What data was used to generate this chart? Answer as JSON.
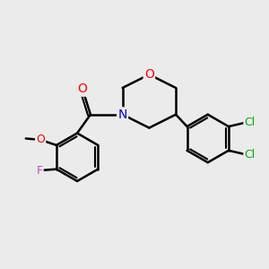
{
  "background_color": "#ebebeb",
  "bond_color": "#000000",
  "bond_width": 1.8,
  "atom_colors": {
    "O": "#ff0000",
    "N": "#0000cc",
    "F": "#cc44cc",
    "Cl": "#00aa00",
    "C": "#000000"
  },
  "font_size": 10,
  "fig_size": [
    3.0,
    3.0
  ],
  "dpi": 100
}
